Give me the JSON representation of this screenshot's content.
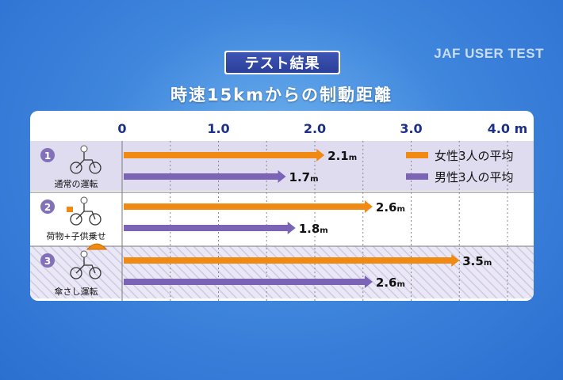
{
  "brand": "JAF USER TEST",
  "title": "テスト結果",
  "subtitle": "時速15kmからの制動距離",
  "colors": {
    "female": "#f08a13",
    "male": "#7b63b5",
    "row_shade": "#e0dcf0",
    "label_text": "#1c2f8a"
  },
  "chart_data": {
    "type": "bar",
    "orientation": "horizontal",
    "title": "時速15kmからの制動距離",
    "xlim": [
      0,
      4.0
    ],
    "x_ticks": [
      {
        "value": 0,
        "label": "0"
      },
      {
        "value": 1.0,
        "label": "1.0"
      },
      {
        "value": 2.0,
        "label": "2.0"
      },
      {
        "value": 3.0,
        "label": "3.0"
      },
      {
        "value": 4.0,
        "label": "4.0 m"
      }
    ],
    "grid": "dotted vertical",
    "legend_position": "top-right",
    "categories": [
      {
        "num": "1",
        "label": "通常の運転"
      },
      {
        "num": "2",
        "label": "荷物+子供乗せ"
      },
      {
        "num": "3",
        "label": "傘さし運転"
      }
    ],
    "series": [
      {
        "name": "女性3人の平均",
        "values": [
          2.1,
          2.6,
          3.5
        ],
        "value_labels": [
          "2.1",
          "2.6",
          "3.5"
        ],
        "unit": "m"
      },
      {
        "name": "男性3人の平均",
        "values": [
          1.7,
          1.8,
          2.6
        ],
        "value_labels": [
          "1.7",
          "1.8",
          "2.6"
        ],
        "unit": "m"
      }
    ]
  }
}
